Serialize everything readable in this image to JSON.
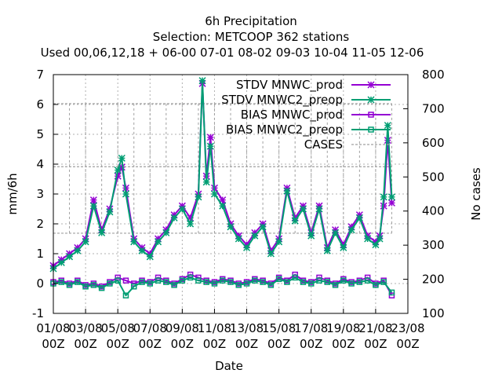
{
  "chart_data": {
    "type": "line",
    "title_lines": [
      "6h Precipitation",
      "Selection: METCOOP     362 stations",
      "Used  00,06,12,18 + 06-00 07-01 08-02 09-03 10-04 11-05 12-06"
    ],
    "xlabel": "Date",
    "ylabel": "mm/6h",
    "y2label": "No cases",
    "ylim": [
      -1,
      7
    ],
    "y2lim": [
      100,
      800
    ],
    "xlim": [
      0,
      22
    ],
    "x_units": "days since 01/08 00Z",
    "yticks": [
      "-1",
      "0",
      "1",
      "2",
      "3",
      "4",
      "5",
      "6",
      "7"
    ],
    "y2ticks": [
      "100",
      "200",
      "300",
      "400",
      "500",
      "600",
      "700",
      "800"
    ],
    "xticks": [
      {
        "line1": "01/08",
        "line2": "00Z"
      },
      {
        "line1": "03/08",
        "line2": "00Z"
      },
      {
        "line1": "05/08",
        "line2": "00Z"
      },
      {
        "line1": "07/08",
        "line2": "00Z"
      },
      {
        "line1": "09/08",
        "line2": "00Z"
      },
      {
        "line1": "11/08",
        "line2": "00Z"
      },
      {
        "line1": "13/08",
        "line2": "00Z"
      },
      {
        "line1": "15/08",
        "line2": "00Z"
      },
      {
        "line1": "17/08",
        "line2": "00Z"
      },
      {
        "line1": "19/08",
        "line2": "00Z"
      },
      {
        "line1": "21/08",
        "line2": "00Z"
      },
      {
        "line1": "23/08",
        "line2": "00Z"
      }
    ],
    "grid": true,
    "legend_position": "top-right",
    "series": [
      {
        "name": "STDV MNWC_prod",
        "color": "#9400d3",
        "marker": "asterisk",
        "x": [
          0,
          0.5,
          1,
          1.5,
          2,
          2.5,
          3,
          3.5,
          4,
          4.25,
          4.5,
          5,
          5.5,
          6,
          6.5,
          7,
          7.5,
          8,
          8.5,
          9,
          9.25,
          9.5,
          9.75,
          10,
          10.5,
          11,
          11.5,
          12,
          12.5,
          13,
          13.5,
          14,
          14.5,
          15,
          15.5,
          16,
          16.5,
          17,
          17.5,
          18,
          18.5,
          19,
          19.5,
          20,
          20.25,
          20.5,
          20.75,
          21
        ],
        "y": [
          0.6,
          0.8,
          1.0,
          1.2,
          1.5,
          2.8,
          1.8,
          2.5,
          3.6,
          3.9,
          3.2,
          1.5,
          1.2,
          1.0,
          1.5,
          1.8,
          2.3,
          2.6,
          2.2,
          3.0,
          6.7,
          3.6,
          4.9,
          3.2,
          2.8,
          2.0,
          1.6,
          1.3,
          1.7,
          2.0,
          1.1,
          1.5,
          3.2,
          2.2,
          2.6,
          1.7,
          2.6,
          1.2,
          1.8,
          1.3,
          1.9,
          2.3,
          1.6,
          1.4,
          1.6,
          2.6,
          4.8,
          2.7
        ]
      },
      {
        "name": "STDV MNWC2_preop",
        "color": "#009e73",
        "marker": "asterisk",
        "x": [
          0,
          0.5,
          1,
          1.5,
          2,
          2.5,
          3,
          3.5,
          4,
          4.25,
          4.5,
          5,
          5.5,
          6,
          6.5,
          7,
          7.5,
          8,
          8.5,
          9,
          9.25,
          9.5,
          9.75,
          10,
          10.5,
          11,
          11.5,
          12,
          12.5,
          13,
          13.5,
          14,
          14.5,
          15,
          15.5,
          16,
          16.5,
          17,
          17.5,
          18,
          18.5,
          19,
          19.5,
          20,
          20.25,
          20.5,
          20.75,
          21
        ],
        "y": [
          0.5,
          0.7,
          0.9,
          1.1,
          1.4,
          2.6,
          1.7,
          2.4,
          3.8,
          4.2,
          3.0,
          1.4,
          1.1,
          0.9,
          1.4,
          1.7,
          2.2,
          2.5,
          2.0,
          2.9,
          6.8,
          3.4,
          4.6,
          3.0,
          2.6,
          1.9,
          1.5,
          1.2,
          1.6,
          1.9,
          1.0,
          1.4,
          3.1,
          2.1,
          2.5,
          1.6,
          2.5,
          1.1,
          1.7,
          1.2,
          1.8,
          2.2,
          1.5,
          1.3,
          1.5,
          2.9,
          5.3,
          2.9
        ]
      },
      {
        "name": "BIAS MNWC_prod",
        "color": "#9400d3",
        "marker": "square",
        "x": [
          0,
          0.5,
          1,
          1.5,
          2,
          2.5,
          3,
          3.5,
          4,
          4.5,
          5,
          5.5,
          6,
          6.5,
          7,
          7.5,
          8,
          8.5,
          9,
          9.5,
          10,
          10.5,
          11,
          11.5,
          12,
          12.5,
          13,
          13.5,
          14,
          14.5,
          15,
          15.5,
          16,
          16.5,
          17,
          17.5,
          18,
          18.5,
          19,
          19.5,
          20,
          20.5,
          21
        ],
        "y": [
          0.05,
          0.1,
          0.0,
          0.1,
          -0.05,
          0.0,
          -0.1,
          0.05,
          0.2,
          0.1,
          0.0,
          0.1,
          0.05,
          0.2,
          0.1,
          0.0,
          0.15,
          0.3,
          0.2,
          0.1,
          0.05,
          0.15,
          0.1,
          0.0,
          0.05,
          0.15,
          0.1,
          0.0,
          0.2,
          0.1,
          0.3,
          0.1,
          0.05,
          0.2,
          0.1,
          0.0,
          0.15,
          0.05,
          0.1,
          0.2,
          0.0,
          0.1,
          -0.4
        ]
      },
      {
        "name": "BIAS MNWC2_preop",
        "color": "#009e73",
        "marker": "square",
        "x": [
          0,
          0.5,
          1,
          1.5,
          2,
          2.5,
          3,
          3.5,
          4,
          4.5,
          5,
          5.5,
          6,
          6.5,
          7,
          7.5,
          8,
          8.5,
          9,
          9.5,
          10,
          10.5,
          11,
          11.5,
          12,
          12.5,
          13,
          13.5,
          14,
          14.5,
          15,
          15.5,
          16,
          16.5,
          17,
          17.5,
          18,
          18.5,
          19,
          19.5,
          20,
          20.5,
          21
        ],
        "y": [
          0.0,
          0.05,
          -0.05,
          0.05,
          -0.1,
          -0.05,
          -0.15,
          0.0,
          0.1,
          -0.4,
          -0.1,
          0.05,
          0.0,
          0.1,
          0.05,
          -0.05,
          0.1,
          0.2,
          0.1,
          0.05,
          0.0,
          0.1,
          0.05,
          -0.05,
          0.0,
          0.1,
          0.05,
          -0.05,
          0.15,
          0.05,
          0.2,
          0.05,
          0.0,
          0.1,
          0.05,
          -0.05,
          0.1,
          0.0,
          0.05,
          0.1,
          -0.05,
          0.05,
          -0.3
        ]
      },
      {
        "name": "CASES",
        "color": "#a0a0a0",
        "marker": "none",
        "axis": "y2",
        "x": [
          0,
          1,
          2,
          3,
          4,
          5,
          6,
          7,
          8,
          9,
          10,
          11,
          12,
          13,
          14,
          15,
          16,
          17,
          18,
          19,
          20,
          21
        ],
        "values_high": [
          715,
          715,
          715,
          715,
          715,
          715,
          715,
          715,
          715,
          715,
          715,
          715,
          715,
          715,
          715,
          715,
          715,
          715,
          715,
          715,
          715,
          715
        ],
        "values_mid": [
          530,
          530,
          530,
          530,
          530,
          530,
          530,
          530,
          530,
          530,
          530,
          530,
          530,
          530,
          530,
          530,
          530,
          530,
          530,
          530,
          530,
          530
        ],
        "values_low": [
          335,
          335,
          335,
          335,
          335,
          335,
          335,
          335,
          335,
          335,
          335,
          335,
          335,
          335,
          335,
          335,
          335,
          335,
          335,
          335,
          335,
          335
        ]
      }
    ]
  }
}
